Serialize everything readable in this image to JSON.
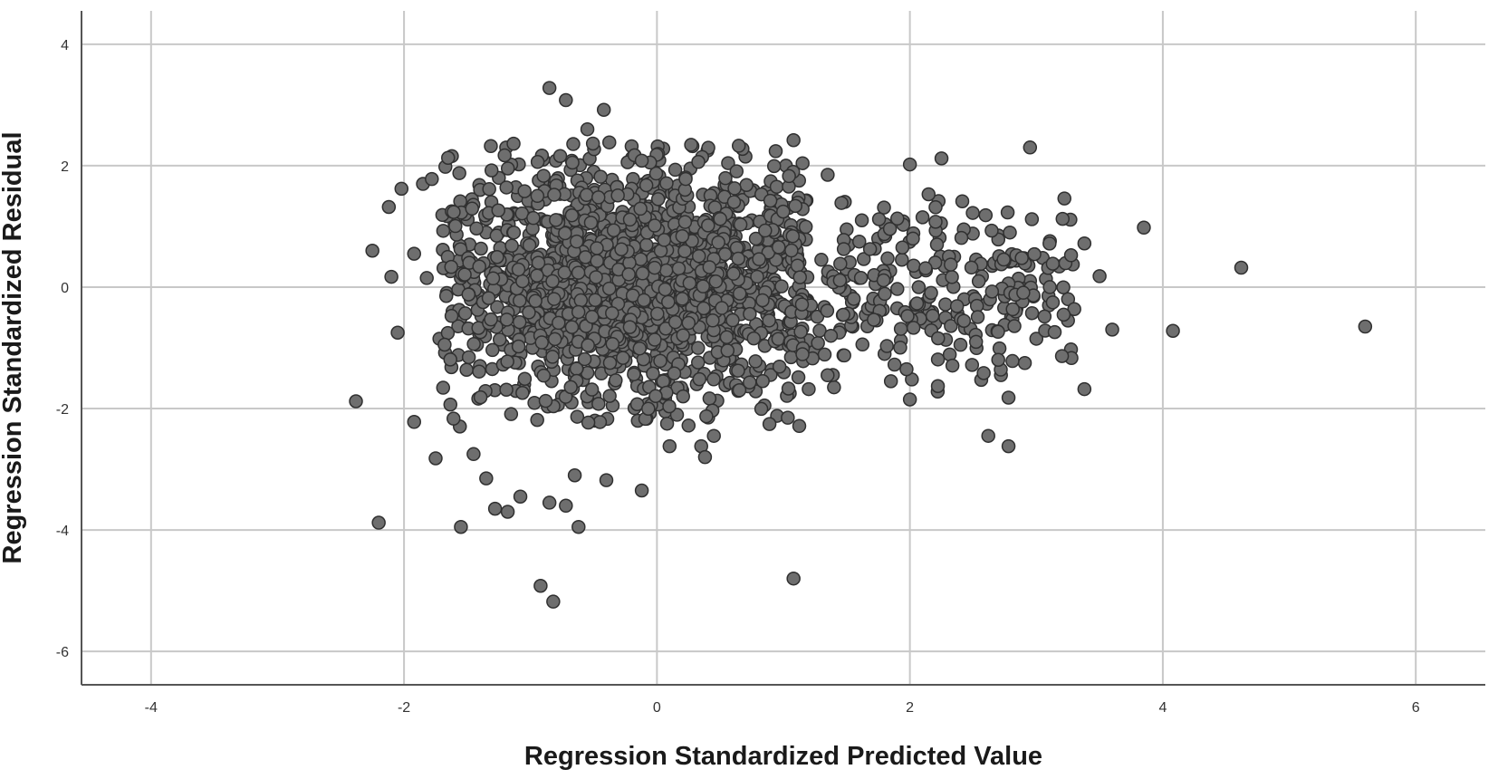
{
  "chart_data": {
    "type": "scatter",
    "title": "",
    "xlabel": "Regression Standardized Predicted Value",
    "ylabel": "Regression Standardized Residual",
    "xlim": [
      -4.55,
      6.55
    ],
    "ylim": [
      -6.55,
      4.55
    ],
    "x_ticks": [
      -4,
      -2,
      0,
      2,
      4,
      6
    ],
    "y_ticks": [
      4,
      2,
      0,
      -2,
      -4,
      -6
    ],
    "x_tick_labels": [
      "-4",
      "-2",
      "0",
      "2",
      "4",
      "6"
    ],
    "y_tick_labels": [
      "4",
      "2",
      "0",
      "-2",
      "-4",
      "-6"
    ],
    "grid": true,
    "legend": "none",
    "marker_color": "#6e6e6e",
    "marker_edge_color": "#303030",
    "points": [
      [
        -2.38,
        -1.88
      ],
      [
        -2.25,
        0.6
      ],
      [
        -2.2,
        -3.88
      ],
      [
        -2.12,
        1.32
      ],
      [
        -2.1,
        0.17
      ],
      [
        -2.05,
        -0.75
      ],
      [
        -2.02,
        1.62
      ],
      [
        -1.92,
        -2.22
      ],
      [
        -1.92,
        0.55
      ],
      [
        -1.85,
        1.7
      ],
      [
        -1.82,
        0.15
      ],
      [
        -1.78,
        1.78
      ],
      [
        -1.75,
        -2.82
      ],
      [
        -1.72,
        -0.85
      ],
      [
        -1.55,
        -3.95
      ],
      [
        -1.45,
        -2.75
      ],
      [
        -1.35,
        -3.15
      ],
      [
        -1.28,
        -3.65
      ],
      [
        -1.18,
        -3.7
      ],
      [
        -1.08,
        -3.45
      ],
      [
        -0.92,
        -4.92
      ],
      [
        -0.82,
        -5.18
      ],
      [
        -0.85,
        -3.55
      ],
      [
        -0.72,
        -3.6
      ],
      [
        -0.62,
        -3.95
      ],
      [
        -0.65,
        -3.1
      ],
      [
        -0.4,
        -3.18
      ],
      [
        -0.12,
        -3.35
      ],
      [
        0.1,
        -2.62
      ],
      [
        0.25,
        -2.28
      ],
      [
        0.35,
        -2.62
      ],
      [
        0.38,
        -2.8
      ],
      [
        0.45,
        -2.45
      ],
      [
        1.08,
        -4.8
      ],
      [
        -0.85,
        3.28
      ],
      [
        -0.72,
        3.08
      ],
      [
        -0.55,
        2.6
      ],
      [
        -0.42,
        2.92
      ],
      [
        -0.2,
        2.32
      ],
      [
        0.05,
        2.28
      ],
      [
        0.4,
        2.25
      ],
      [
        0.7,
        2.15
      ],
      [
        1.02,
        2.0
      ],
      [
        1.08,
        2.42
      ],
      [
        1.35,
        1.85
      ],
      [
        1.62,
        1.1
      ],
      [
        2.0,
        2.02
      ],
      [
        2.25,
        2.12
      ],
      [
        2.95,
        2.3
      ],
      [
        3.85,
        0.98
      ],
      [
        4.62,
        0.32
      ],
      [
        5.6,
        -0.65
      ],
      [
        4.08,
        -0.72
      ],
      [
        3.6,
        -0.7
      ],
      [
        3.5,
        0.18
      ],
      [
        3.38,
        0.72
      ],
      [
        3.05,
        0.48
      ],
      [
        2.72,
        -1.45
      ],
      [
        2.78,
        -1.82
      ],
      [
        2.78,
        -2.62
      ],
      [
        2.62,
        -2.45
      ],
      [
        3.38,
        -1.68
      ],
      [
        2.0,
        -1.85
      ],
      [
        2.22,
        -1.72
      ],
      [
        1.85,
        -1.55
      ],
      [
        1.4,
        -1.65
      ],
      [
        1.2,
        -1.68
      ],
      [
        1.05,
        -1.75
      ],
      [
        0.95,
        -2.12
      ],
      [
        0.85,
        -1.95
      ],
      [
        -1.55,
        -0.5
      ],
      [
        -1.48,
        0.2
      ],
      [
        -1.35,
        0.9
      ],
      [
        -1.22,
        -0.95
      ],
      [
        -1.1,
        1.5
      ],
      [
        -0.95,
        -0.2
      ],
      [
        -0.82,
        0.75
      ],
      [
        -0.7,
        -1.35
      ],
      [
        -0.6,
        0.25
      ],
      [
        -0.45,
        1.2
      ],
      [
        -0.3,
        -0.6
      ],
      [
        -0.15,
        0.55
      ],
      [
        0.0,
        -1.1
      ],
      [
        0.12,
        1.35
      ],
      [
        0.25,
        -0.3
      ],
      [
        0.38,
        0.85
      ],
      [
        0.5,
        -0.95
      ],
      [
        0.62,
        0.3
      ],
      [
        0.75,
        1.1
      ],
      [
        0.88,
        -0.45
      ],
      [
        1.0,
        0.6
      ],
      [
        1.15,
        -0.2
      ],
      [
        1.3,
        0.45
      ],
      [
        1.45,
        -0.7
      ],
      [
        1.6,
        0.15
      ],
      [
        1.75,
        0.8
      ],
      [
        1.9,
        -0.35
      ],
      [
        2.05,
        0.25
      ],
      [
        2.2,
        -0.6
      ],
      [
        2.35,
        0.5
      ],
      [
        2.5,
        -0.15
      ],
      [
        2.65,
        0.35
      ],
      [
        2.8,
        -0.5
      ],
      [
        2.95,
        0.1
      ],
      [
        3.1,
        -0.3
      ],
      [
        3.25,
        -0.55
      ],
      [
        -1.6,
        1.05
      ],
      [
        -1.4,
        -1.3
      ],
      [
        -1.25,
        1.8
      ],
      [
        -1.05,
        -1.6
      ],
      [
        -0.9,
        2.1
      ],
      [
        -0.75,
        -1.8
      ],
      [
        -0.5,
        1.9
      ],
      [
        -0.35,
        -1.95
      ],
      [
        -0.1,
        1.7
      ],
      [
        0.2,
        -1.7
      ],
      [
        0.45,
        1.55
      ],
      [
        0.7,
        -1.4
      ],
      [
        0.9,
        1.3
      ],
      [
        1.25,
        -1.05
      ],
      [
        1.5,
        0.95
      ],
      [
        1.8,
        -1.1
      ],
      [
        2.1,
        1.15
      ],
      [
        2.4,
        -0.95
      ],
      [
        2.7,
        0.85
      ],
      [
        3.0,
        -0.85
      ]
    ]
  }
}
